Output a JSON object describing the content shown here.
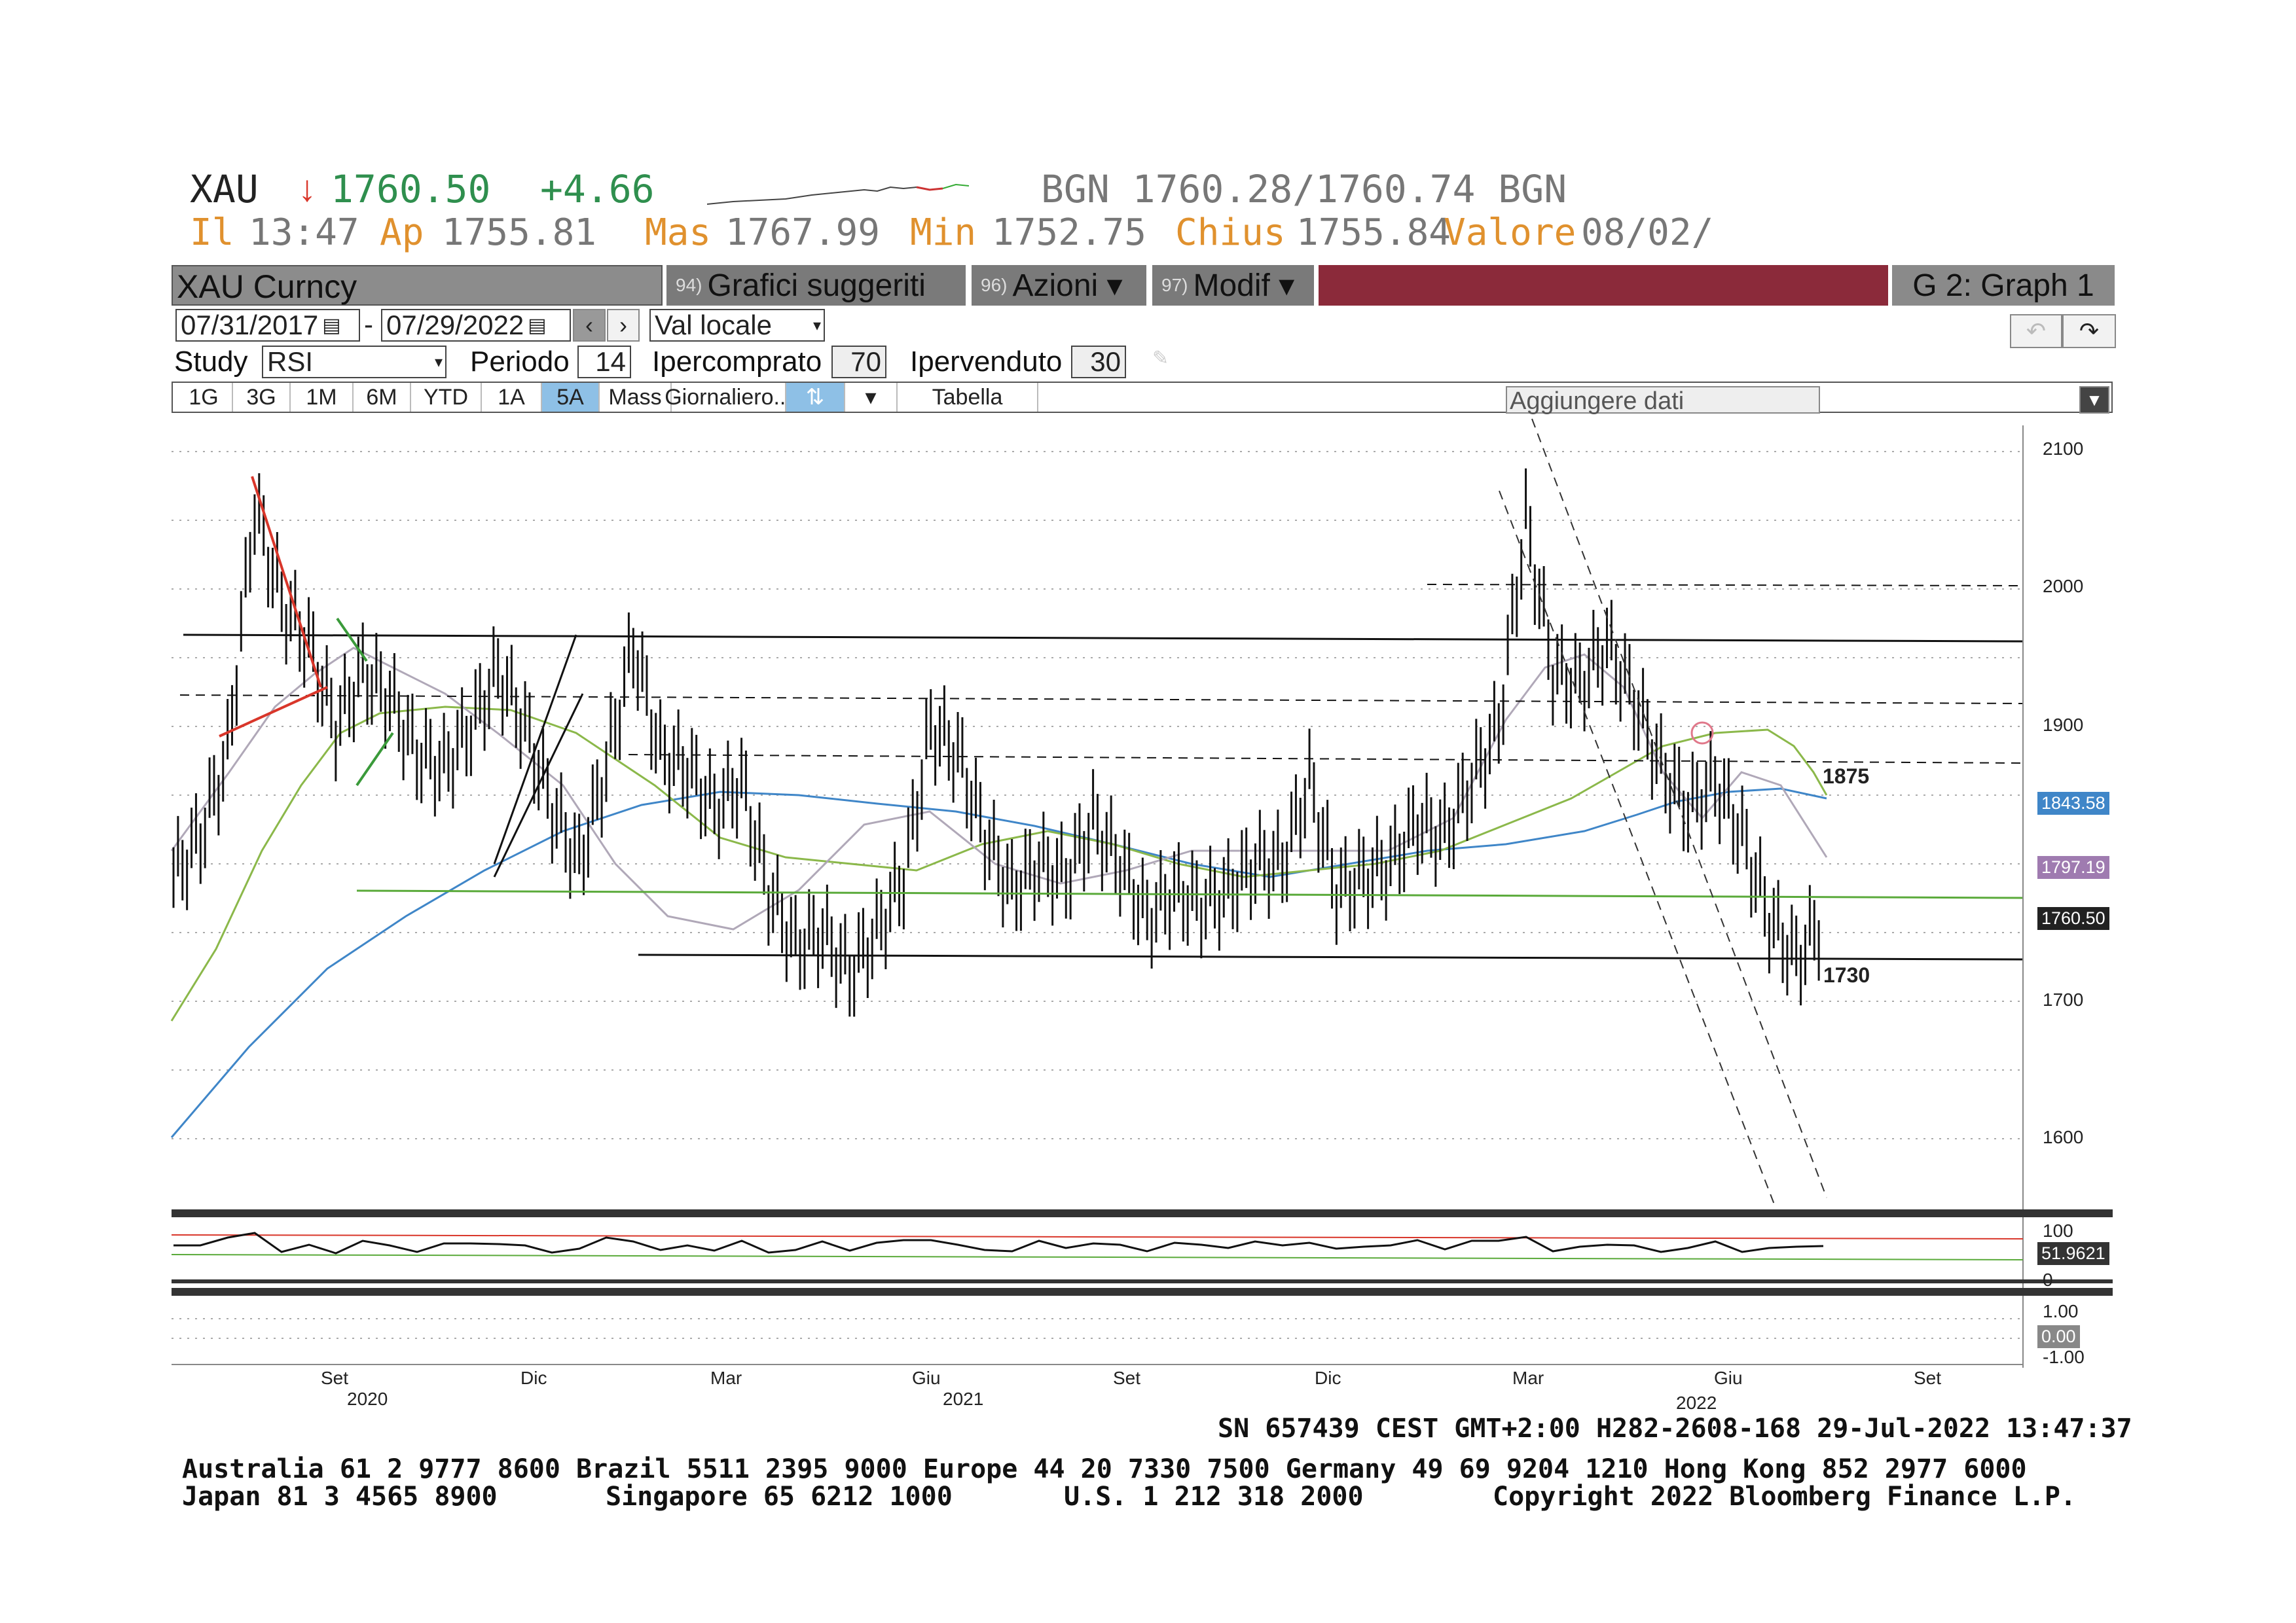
{
  "quote": {
    "ticker": "XAU",
    "arrow": "↓",
    "last": "1760.50",
    "change": "+4.66",
    "bid_ask": "BGN 1760.28/1760.74 BGN",
    "time_label": "Il",
    "time": "13:47",
    "open_label": "Ap",
    "open": "1755.81",
    "high_label": "Mas",
    "high": "1767.99",
    "low_label": "Min",
    "low": "1752.75",
    "close_label": "Chius",
    "close": "1755.84",
    "value_label": "Valore",
    "value": "08/02/"
  },
  "toolbar": {
    "security": "XAU Curncy",
    "menu1_num": "94)",
    "menu1": "Grafici suggeriti",
    "menu2_num": "96)",
    "menu2": "Azioni ▾",
    "menu3_num": "97)",
    "menu3": "Modif ▾",
    "graph": "G 2: Graph 1"
  },
  "controls": {
    "date_from": "07/31/2017",
    "date_to": "07/29/2022",
    "currency": "Val locale",
    "study_label": "Study",
    "study": "RSI",
    "period_label": "Periodo",
    "period": "14",
    "overbought_label": "Ipercomprato",
    "overbought": "70",
    "oversold_label": "Ipervenduto",
    "oversold": "30",
    "add_data": "Aggiungere dati"
  },
  "tabs": [
    "1G",
    "3G",
    "1M",
    "6M",
    "YTD",
    "1A",
    "5A",
    "Mass",
    "Giornaliero...",
    "",
    "",
    "Tabella"
  ],
  "active_tab": "5A",
  "chart_data": {
    "type": "line",
    "y_ticks": [
      "2100",
      "2000",
      "1900",
      "1700",
      "1600"
    ],
    "x_ticks": [
      "Set",
      "Dic",
      "Mar",
      "Giu",
      "Set",
      "Dic",
      "Mar",
      "Giu",
      "Set"
    ],
    "year_labels": [
      "2020",
      "2021",
      "2022"
    ],
    "price_tags": [
      {
        "text": "1843.58",
        "color": "#3f86c8"
      },
      {
        "text": "1797.19",
        "color": "#9f7bb0"
      },
      {
        "text": "1760.50",
        "color": "#222222"
      }
    ],
    "annotations": [
      "1875",
      "1730"
    ],
    "levels": {
      "resistance": 1875,
      "support": 1730
    },
    "rsi": {
      "ticks": [
        "100",
        "0"
      ],
      "value": "51.9621"
    },
    "third_panel": {
      "ticks": [
        "1.00",
        "-1.00"
      ],
      "value": "0.00"
    },
    "close_approx": [
      1790,
      1820,
      1880,
      2060,
      1990,
      1960,
      1900,
      1940,
      1920,
      1880,
      1870,
      1900,
      1940,
      1900,
      1840,
      1800,
      1870,
      1960,
      1880,
      1870,
      1840,
      1860,
      1780,
      1740,
      1750,
      1720,
      1750,
      1790,
      1900,
      1880,
      1820,
      1780,
      1800,
      1790,
      1830,
      1800,
      1760,
      1780,
      1770,
      1780,
      1800,
      1800,
      1860,
      1780,
      1790,
      1800,
      1830,
      1820,
      1860,
      1900,
      2050,
      1940,
      1930,
      1960,
      1920,
      1870,
      1840,
      1860,
      1820,
      1760,
      1730,
      1760
    ]
  },
  "footer": {
    "sn": "SN 657439 CEST GMT+2:00 H282-2608-168 29-Jul-2022 13:47:37",
    "line1": "Australia 61 2 9777 8600 Brazil 5511 2395 9000 Europe 44 20 7330 7500 Germany 49 69 9204 1210 Hong Kong 852 2977 6000",
    "line2a": "Japan 81 3 4565 8900",
    "line2b": "Singapore 65 6212 1000",
    "line2c": "U.S. 1 212 318 2000",
    "line2d": "Copyright 2022 Bloomberg Finance L.P."
  },
  "colors": {
    "menu_bar": "#7a7a7a",
    "red_bar": "#8b2a3a",
    "active_tab": "#8ec0e6",
    "ma_blue": "#3f86c8",
    "ma_green": "#8bb84a",
    "ma_grey": "#b0a8b8"
  }
}
